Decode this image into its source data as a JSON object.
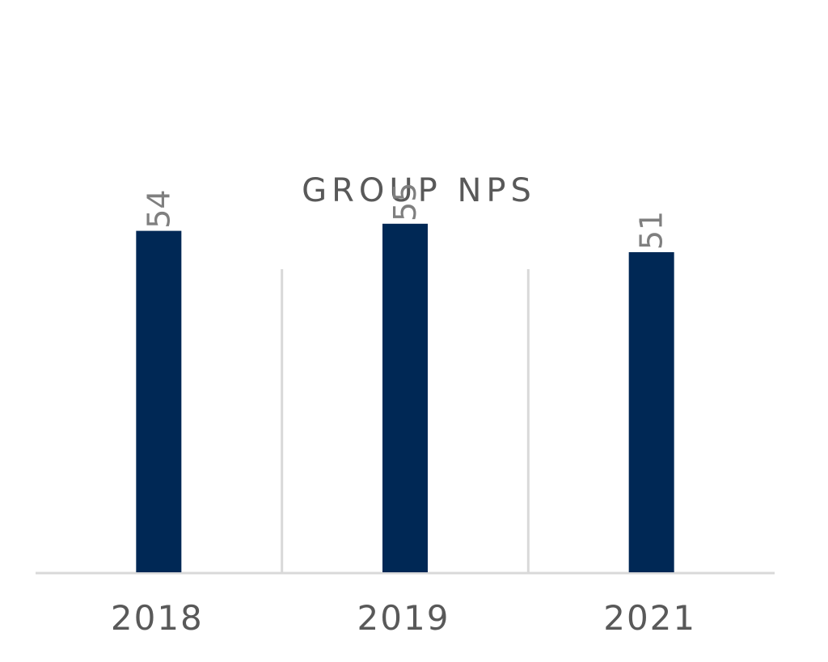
{
  "chart_data": {
    "type": "bar",
    "title": "GROUP NPS",
    "categories": [
      "2018",
      "2019",
      "2021"
    ],
    "values": [
      54,
      55,
      51
    ],
    "data_labels": [
      "54",
      "55",
      "51"
    ],
    "xlabel": "",
    "ylabel": "",
    "grid": false,
    "legend": "none",
    "data_label_orientation": "rotated-vertical"
  },
  "colors": {
    "bar": "#002855",
    "axis": "#d9d9d9",
    "separator": "#d9d9d9",
    "title": "#595959",
    "tick_label": "#595959",
    "data_label": "#7f7f7f",
    "background": "#ffffff"
  }
}
